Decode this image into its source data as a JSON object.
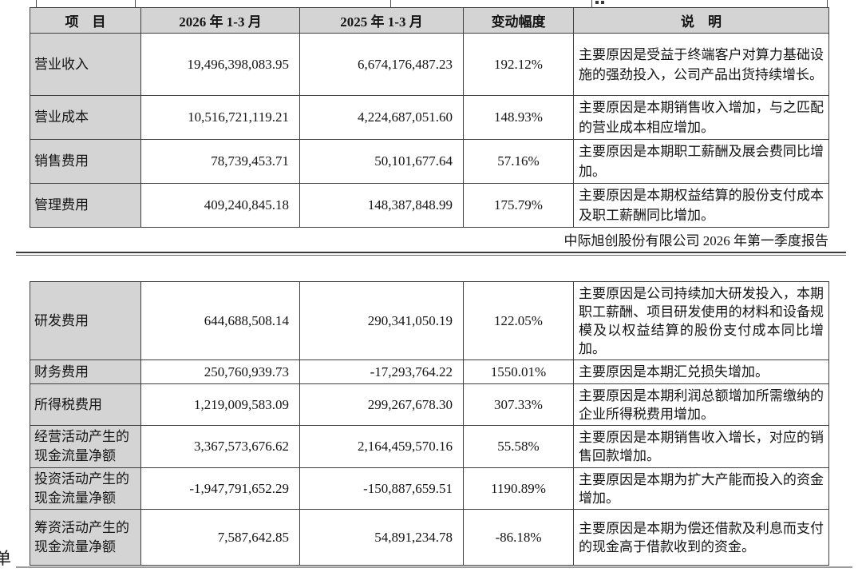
{
  "page": {
    "report_title": "中际旭创股份有限公司 2026 年第一季度报告",
    "bottom_left_partial": "单"
  },
  "colors": {
    "header_bg": "#d4d4d4",
    "label_bg": "#d4d4d4",
    "border": "#3f3f3f"
  },
  "columns": [
    "项　目",
    "2026 年 1-3 月",
    "2025 年 1-3 月",
    "变动幅度",
    "说　明"
  ],
  "table_top": {
    "rows": [
      {
        "item": "营业收入",
        "y2026": "19,496,398,083.95",
        "y2025": "6,674,176,487.23",
        "change": "192.12%",
        "note": "主要原因是受益于终端客户对算力基础设施的强劲投入，公司产品出货持续增长。"
      },
      {
        "item": "营业成本",
        "y2026": "10,516,721,119.21",
        "y2025": "4,224,687,051.60",
        "change": "148.93%",
        "note": "主要原因是本期销售收入增加，与之匹配的营业成本相应增加。"
      },
      {
        "item": "销售费用",
        "y2026": "78,739,453.71",
        "y2025": "50,101,677.64",
        "change": "57.16%",
        "note": "主要原因是本期职工薪酬及展会费同比增加。"
      },
      {
        "item": "管理费用",
        "y2026": "409,240,845.18",
        "y2025": "148,387,848.99",
        "change": "175.79%",
        "note": "主要原因是本期权益结算的股份支付成本及职工薪酬同比增加。"
      }
    ]
  },
  "table_bottom": {
    "rows": [
      {
        "item": "研发费用",
        "y2026": "644,688,508.14",
        "y2025": "290,341,050.19",
        "change": "122.05%",
        "note": "主要原因是公司持续加大研发投入，本期职工薪酬、项目研发使用的材料和设备规模及以权益结算的股份支付成本同比增加。"
      },
      {
        "item": "财务费用",
        "y2026": "250,760,939.73",
        "y2025": "-17,293,764.22",
        "change": "1550.01%",
        "note": "主要原因是本期汇兑损失增加。"
      },
      {
        "item": "所得税费用",
        "y2026": "1,219,009,583.09",
        "y2025": "299,267,678.30",
        "change": "307.33%",
        "note": "主要原因是本期利润总额增加所需缴纳的企业所得税费用增加。"
      },
      {
        "item": "经营活动产生的现金流量净额",
        "y2026": "3,367,573,676.62",
        "y2025": "2,164,459,570.16",
        "change": "55.58%",
        "note": "主要原因是本期销售收入增长，对应的销售回款增加。"
      },
      {
        "item": "投资活动产生的现金流量净额",
        "y2026": "-1,947,791,652.29",
        "y2025": "-150,887,659.51",
        "change": "1190.89%",
        "note": "主要原因是本期为扩大产能而投入的资金增加。"
      },
      {
        "item": "筹资活动产生的现金流量净额",
        "y2026": "7,587,642.85",
        "y2025": "54,891,234.78",
        "change": "-86.18%",
        "note": "主要原因是本期为偿还借款及利息而支付的现金高于借款收到的资金。"
      }
    ]
  }
}
